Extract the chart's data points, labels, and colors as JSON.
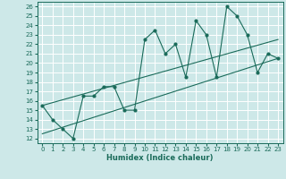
{
  "xlabel": "Humidex (Indice chaleur)",
  "bg_color": "#cde8e8",
  "grid_color": "#ffffff",
  "line_color": "#1a6b5a",
  "xlim": [
    -0.5,
    23.5
  ],
  "ylim": [
    11.5,
    26.5
  ],
  "xticks": [
    0,
    1,
    2,
    3,
    4,
    5,
    6,
    7,
    8,
    9,
    10,
    11,
    12,
    13,
    14,
    15,
    16,
    17,
    18,
    19,
    20,
    21,
    22,
    23
  ],
  "yticks": [
    12,
    13,
    14,
    15,
    16,
    17,
    18,
    19,
    20,
    21,
    22,
    23,
    24,
    25,
    26
  ],
  "series1_x": [
    0,
    1,
    2,
    3,
    4,
    5,
    6,
    7,
    8,
    9,
    10,
    11,
    12,
    13,
    14,
    15,
    16,
    17,
    18,
    19,
    20,
    21,
    22,
    23
  ],
  "series1_y": [
    15.5,
    14.0,
    13.0,
    12.0,
    16.5,
    16.5,
    17.5,
    17.5,
    15.0,
    15.0,
    22.5,
    23.5,
    21.0,
    22.0,
    18.5,
    24.5,
    23.0,
    18.5,
    26.0,
    25.0,
    23.0,
    19.0,
    21.0,
    20.5
  ],
  "trend1_x": [
    0,
    23
  ],
  "trend1_y": [
    12.5,
    20.5
  ],
  "trend2_x": [
    0,
    23
  ],
  "trend2_y": [
    15.5,
    22.5
  ]
}
